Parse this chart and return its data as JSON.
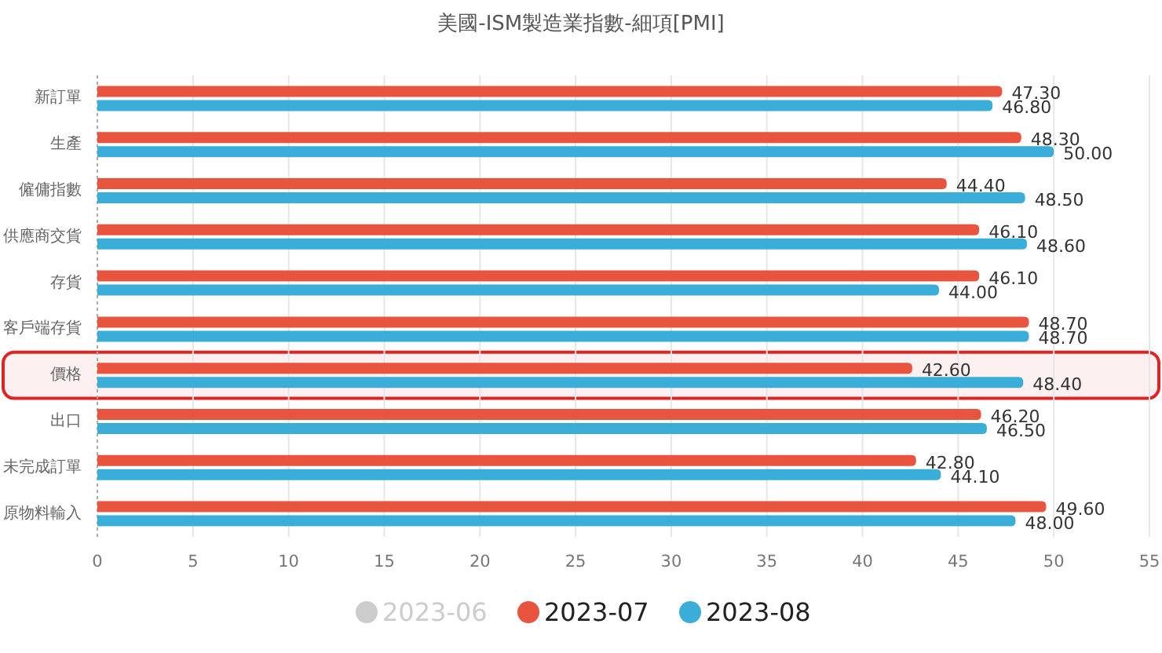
{
  "chart_data": {
    "type": "bar",
    "orientation": "horizontal",
    "title": "美國-ISM製造業指數-細項[PMI]",
    "categories": [
      "新訂單",
      "生產",
      "僱傭指數",
      "供應商交貨",
      "存貨",
      "客戶端存貨",
      "價格",
      "出口",
      "未完成訂單",
      "原物料輸入"
    ],
    "series": [
      {
        "name": "2023-06",
        "color": "#cccccc",
        "values": [
          null,
          null,
          null,
          null,
          null,
          null,
          null,
          null,
          null,
          null
        ]
      },
      {
        "name": "2023-07",
        "color": "#e8543e",
        "values": [
          47.3,
          48.3,
          44.4,
          46.1,
          46.1,
          48.7,
          42.6,
          46.2,
          42.8,
          49.6
        ],
        "value_labels": [
          "47.30",
          "48.30",
          "44.40",
          "46.10",
          "46.10",
          "48.70",
          "42.60",
          "46.20",
          "42.80",
          "49.60"
        ]
      },
      {
        "name": "2023-08",
        "color": "#3aaed8",
        "values": [
          46.8,
          50.0,
          48.5,
          48.6,
          44.0,
          48.7,
          48.4,
          46.5,
          44.1,
          48.0
        ],
        "value_labels": [
          "46.80",
          "50.00",
          "48.50",
          "48.60",
          "44.00",
          "48.70",
          "48.40",
          "46.50",
          "44.10",
          "48.00"
        ]
      }
    ],
    "xlim": [
      0,
      55
    ],
    "xticks": [
      0,
      5,
      10,
      15,
      20,
      25,
      30,
      35,
      40,
      45,
      50,
      55
    ],
    "grid": "x",
    "legend": "bottom",
    "bands": [
      {
        "axis": "y",
        "from": "價格",
        "to": "價格",
        "color": "#e02424"
      }
    ]
  }
}
